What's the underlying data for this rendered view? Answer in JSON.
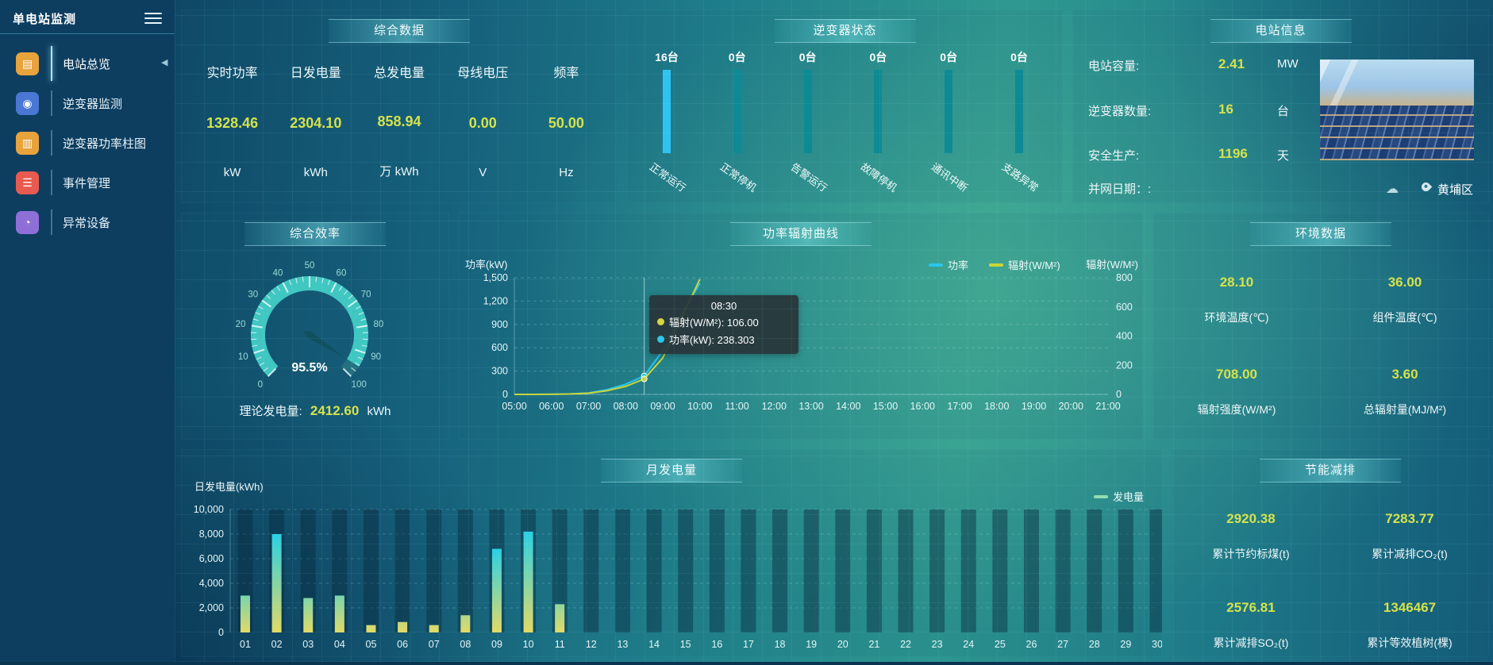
{
  "app": {
    "title": "单电站监测"
  },
  "sidebar": {
    "items": [
      {
        "label": "电站总览",
        "icon": "station-overview-icon",
        "glyph": "▤",
        "color": "#e8a33d",
        "active": true
      },
      {
        "label": "逆变器监测",
        "icon": "inverter-monitor-icon",
        "glyph": "◉",
        "color": "#4a77d4",
        "active": false
      },
      {
        "label": "逆变器功率柱图",
        "icon": "inverter-power-bar-icon",
        "glyph": "▥",
        "color": "#e8a33d",
        "active": false
      },
      {
        "label": "事件管理",
        "icon": "event-management-icon",
        "glyph": "☰",
        "color": "#e85a50",
        "active": false
      },
      {
        "label": "异常设备",
        "icon": "abnormal-device-icon",
        "glyph": "◔",
        "color": "#8e6fd8",
        "active": false
      }
    ]
  },
  "summary": {
    "title": "综合数据",
    "metrics": [
      {
        "label": "实时功率",
        "value": "1328.46",
        "unit": "kW"
      },
      {
        "label": "日发电量",
        "value": "2304.10",
        "unit": "kWh"
      },
      {
        "label": "总发电量",
        "value": "858.94",
        "unit": "万 kWh"
      },
      {
        "label": "母线电压",
        "value": "0.00",
        "unit": "V"
      },
      {
        "label": "频率",
        "value": "50.00",
        "unit": "Hz"
      }
    ]
  },
  "station_info": {
    "title": "电站信息",
    "rows": [
      {
        "label": "电站容量:",
        "value": "2.41",
        "unit": "MW"
      },
      {
        "label": "逆变器数量:",
        "value": "16",
        "unit": "台"
      },
      {
        "label": "安全生产:",
        "value": "1196",
        "unit": "天"
      },
      {
        "label": "并网日期：:",
        "value": "",
        "unit": ""
      }
    ],
    "location": "黄埔区"
  },
  "efficiency": {
    "theory_label": "理论发电量:",
    "theory_value": "2412.60",
    "theory_unit": "kWh"
  },
  "environment": {
    "title": "环境数据",
    "metrics": [
      {
        "value": "28.10",
        "label": "环境温度(℃)"
      },
      {
        "value": "36.00",
        "label": "组件温度(℃)"
      },
      {
        "value": "708.00",
        "label": "辐射强度(W/M²)"
      },
      {
        "value": "3.60",
        "label": "总辐射量(MJ/M²)"
      }
    ]
  },
  "saving": {
    "title": "节能减排",
    "metrics": [
      {
        "value": "2920.38",
        "label": "累计节约标煤(t)"
      },
      {
        "value": "7283.77",
        "label": "累计减排CO₂(t)"
      },
      {
        "value": "2576.81",
        "label": "累计减排SO₂(t)"
      },
      {
        "value": "1346467",
        "label": "累计等效植树(棵)"
      }
    ]
  },
  "chart_data": [
    {
      "id": "inverter_status",
      "type": "bar",
      "title": "逆变器状态",
      "categories": [
        "正常运行",
        "正常停机",
        "告警运行",
        "故障停机",
        "通讯中断",
        "支路异常"
      ],
      "values": [
        16,
        0,
        0,
        0,
        0,
        0
      ],
      "unit": "台",
      "highlight_color": "#2fc3f2",
      "bar_color": "#0e8a94"
    },
    {
      "id": "efficiency_gauge",
      "type": "gauge",
      "title": "综合效率",
      "value": 95.5,
      "value_label": "95.5%",
      "min": 0,
      "max": 100,
      "tick_step": 10,
      "color": "#41c7c2"
    },
    {
      "id": "power_radiation",
      "type": "line",
      "title": "功率辐射曲线",
      "x": [
        "05:00",
        "05:30",
        "06:00",
        "06:30",
        "07:00",
        "07:30",
        "08:00",
        "08:30",
        "09:00",
        "09:30",
        "10:00"
      ],
      "x_axis_labels": [
        "05:00",
        "06:00",
        "07:00",
        "08:00",
        "09:00",
        "10:00",
        "11:00",
        "12:00",
        "13:00",
        "14:00",
        "15:00",
        "16:00",
        "17:00",
        "18:00",
        "19:00",
        "20:00",
        "21:00"
      ],
      "series": [
        {
          "name": "功率",
          "axis": "left",
          "color": "#29c6ee",
          "values": [
            0,
            0,
            2,
            6,
            18,
            60,
            130,
            238.303,
            560,
            1020,
            1430
          ]
        },
        {
          "name": "辐射(W/M²)",
          "axis": "right",
          "color": "#c9d53a",
          "values": [
            0,
            0,
            1,
            3,
            8,
            25,
            55,
            106,
            250,
            520,
            790
          ]
        }
      ],
      "left_axis": {
        "name": "功率(kW)",
        "ticks": [
          0,
          300,
          600,
          900,
          1200,
          1500
        ],
        "labels": [
          "0",
          "300",
          "600",
          "900",
          "1,200",
          "1,500"
        ]
      },
      "right_axis": {
        "name": "辐射(W/M²)",
        "ticks": [
          0,
          200,
          400,
          600,
          800
        ],
        "labels": [
          "0",
          "200",
          "400",
          "600",
          "800"
        ]
      },
      "legend": [
        "功率",
        "辐射(W/M²)"
      ],
      "tooltip": {
        "time": "08:30",
        "items": [
          {
            "label": "辐射(W/M²)",
            "value": "106.00",
            "color": "#d8d63e"
          },
          {
            "label": "功率(kW)",
            "value": "238.303",
            "color": "#29c6ee"
          }
        ]
      }
    },
    {
      "id": "monthly_energy",
      "type": "bar",
      "title": "月发电量",
      "ylabel": "日发电量(kWh)",
      "categories": [
        "01",
        "02",
        "03",
        "04",
        "05",
        "06",
        "07",
        "08",
        "09",
        "10",
        "11",
        "12",
        "13",
        "14",
        "15",
        "16",
        "17",
        "18",
        "19",
        "20",
        "21",
        "22",
        "23",
        "24",
        "25",
        "26",
        "27",
        "28",
        "29",
        "30"
      ],
      "values": [
        3000,
        8000,
        2800,
        3000,
        600,
        850,
        600,
        1400,
        6800,
        8200,
        2300,
        0,
        0,
        0,
        0,
        0,
        0,
        0,
        0,
        0,
        0,
        0,
        0,
        0,
        0,
        0,
        0,
        0,
        0,
        0
      ],
      "ylim": [
        0,
        10000
      ],
      "yticks": [
        0,
        2000,
        4000,
        6000,
        8000,
        10000
      ],
      "ytick_labels": [
        "0",
        "2,000",
        "4,000",
        "6,000",
        "8,000",
        "10,000"
      ],
      "legend": "发电量",
      "legend_color": "#8fdcae",
      "bar_gradient_top": "#2ad0e4",
      "bar_gradient_bottom": "#e2da66"
    }
  ]
}
